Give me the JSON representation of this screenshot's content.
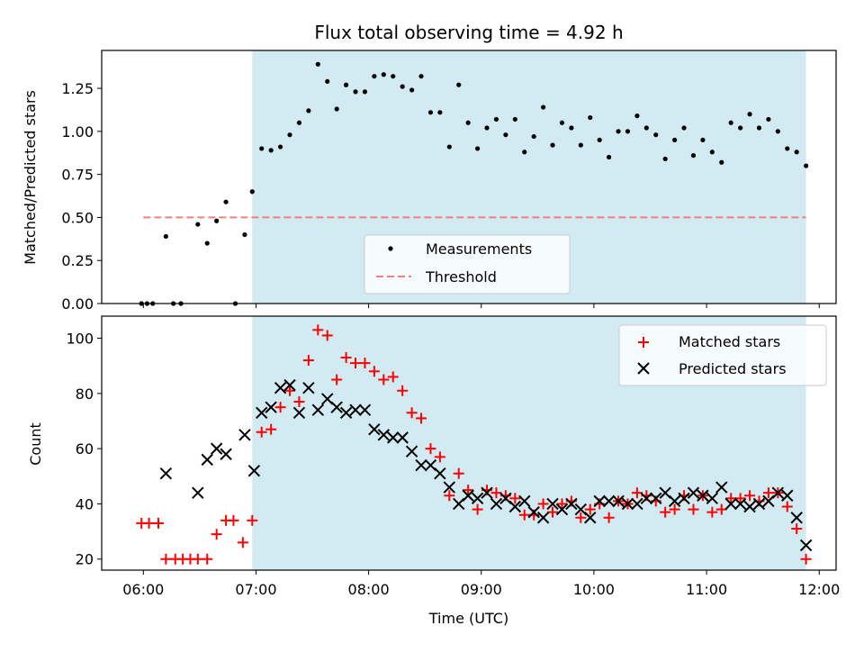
{
  "title": "Flux total observing time = 4.92 h",
  "colors": {
    "shade": "#add8e6",
    "measurement": "#000000",
    "threshold": "#f08080",
    "matched": "#ff0000",
    "predicted": "#000000"
  },
  "xaxis": {
    "label": "Time (UTC)",
    "range_hours": [
      5.63,
      12.15
    ],
    "ticks": [
      "06:00",
      "07:00",
      "08:00",
      "09:00",
      "10:00",
      "11:00",
      "12:00"
    ]
  },
  "shaded_interval": {
    "start": "06:58",
    "end": "11:53"
  },
  "chart_data": [
    {
      "type": "scatter",
      "name": "ratio-panel",
      "ylabel": "Matched/Predicted stars",
      "ylim": [
        0,
        1.47
      ],
      "yticks": [
        "0.00",
        "0.25",
        "0.50",
        "0.75",
        "1.00",
        "1.25"
      ],
      "threshold": {
        "name": "Threshold",
        "value": 0.5,
        "x_start": "06:00",
        "x_end": "11:53"
      },
      "legend": {
        "placement": "lower-center",
        "entries": [
          "Measurements",
          "Threshold"
        ]
      },
      "series": [
        {
          "name": "Measurements",
          "points": [
            [
              "05:59",
              0.0
            ],
            [
              "06:02",
              0.0
            ],
            [
              "06:05",
              0.0
            ],
            [
              "06:12",
              0.39
            ],
            [
              "06:16",
              0.0
            ],
            [
              "06:20",
              0.0
            ],
            [
              "06:29",
              0.46
            ],
            [
              "06:34",
              0.35
            ],
            [
              "06:39",
              0.48
            ],
            [
              "06:44",
              0.59
            ],
            [
              "06:49",
              0.0
            ],
            [
              "06:54",
              0.4
            ],
            [
              "06:58",
              0.65
            ],
            [
              "07:03",
              0.9
            ],
            [
              "07:08",
              0.89
            ],
            [
              "07:13",
              0.91
            ],
            [
              "07:18",
              0.98
            ],
            [
              "07:23",
              1.05
            ],
            [
              "07:28",
              1.12
            ],
            [
              "07:33",
              1.39
            ],
            [
              "07:38",
              1.29
            ],
            [
              "07:43",
              1.13
            ],
            [
              "07:48",
              1.27
            ],
            [
              "07:53",
              1.23
            ],
            [
              "07:58",
              1.23
            ],
            [
              "08:03",
              1.32
            ],
            [
              "08:08",
              1.33
            ],
            [
              "08:13",
              1.32
            ],
            [
              "08:18",
              1.26
            ],
            [
              "08:23",
              1.24
            ],
            [
              "08:28",
              1.32
            ],
            [
              "08:33",
              1.11
            ],
            [
              "08:38",
              1.11
            ],
            [
              "08:43",
              0.91
            ],
            [
              "08:48",
              1.27
            ],
            [
              "08:53",
              1.05
            ],
            [
              "08:58",
              0.9
            ],
            [
              "09:03",
              1.02
            ],
            [
              "09:08",
              1.07
            ],
            [
              "09:13",
              0.98
            ],
            [
              "09:18",
              1.07
            ],
            [
              "09:23",
              0.88
            ],
            [
              "09:28",
              0.97
            ],
            [
              "09:33",
              1.14
            ],
            [
              "09:38",
              0.92
            ],
            [
              "09:43",
              1.05
            ],
            [
              "09:48",
              1.02
            ],
            [
              "09:53",
              0.92
            ],
            [
              "09:58",
              1.08
            ],
            [
              "10:03",
              0.95
            ],
            [
              "10:08",
              0.85
            ],
            [
              "10:13",
              1.0
            ],
            [
              "10:18",
              1.0
            ],
            [
              "10:23",
              1.09
            ],
            [
              "10:28",
              1.02
            ],
            [
              "10:33",
              0.98
            ],
            [
              "10:38",
              0.84
            ],
            [
              "10:43",
              0.95
            ],
            [
              "10:48",
              1.02
            ],
            [
              "10:53",
              0.86
            ],
            [
              "10:58",
              0.95
            ],
            [
              "11:03",
              0.88
            ],
            [
              "11:08",
              0.82
            ],
            [
              "11:13",
              1.05
            ],
            [
              "11:18",
              1.02
            ],
            [
              "11:23",
              1.1
            ],
            [
              "11:28",
              1.02
            ],
            [
              "11:33",
              1.07
            ],
            [
              "11:38",
              1.0
            ],
            [
              "11:43",
              0.9
            ],
            [
              "11:48",
              0.88
            ],
            [
              "11:53",
              0.8
            ]
          ]
        }
      ]
    },
    {
      "type": "scatter",
      "name": "count-panel",
      "ylabel": "Count",
      "ylim": [
        16,
        108
      ],
      "yticks": [
        "20",
        "40",
        "60",
        "80",
        "100"
      ],
      "legend": {
        "placement": "upper-right",
        "entries": [
          "Matched stars",
          "Predicted stars"
        ]
      },
      "series": [
        {
          "name": "Matched stars",
          "marker": "plus",
          "points": [
            [
              "05:59",
              33
            ],
            [
              "06:03",
              33
            ],
            [
              "06:08",
              33
            ],
            [
              "06:12",
              20
            ],
            [
              "06:17",
              20
            ],
            [
              "06:21",
              20
            ],
            [
              "06:25",
              20
            ],
            [
              "06:29",
              20
            ],
            [
              "06:34",
              20
            ],
            [
              "06:39",
              29
            ],
            [
              "06:44",
              34
            ],
            [
              "06:48",
              34
            ],
            [
              "06:53",
              26
            ],
            [
              "06:58",
              34
            ],
            [
              "07:03",
              66
            ],
            [
              "07:08",
              67
            ],
            [
              "07:13",
              75
            ],
            [
              "07:18",
              81
            ],
            [
              "07:23",
              77
            ],
            [
              "07:28",
              92
            ],
            [
              "07:33",
              103
            ],
            [
              "07:38",
              101
            ],
            [
              "07:43",
              85
            ],
            [
              "07:48",
              93
            ],
            [
              "07:53",
              91
            ],
            [
              "07:58",
              91
            ],
            [
              "08:03",
              88
            ],
            [
              "08:08",
              85
            ],
            [
              "08:13",
              86
            ],
            [
              "08:18",
              81
            ],
            [
              "08:23",
              73
            ],
            [
              "08:28",
              71
            ],
            [
              "08:33",
              60
            ],
            [
              "08:38",
              57
            ],
            [
              "08:43",
              43
            ],
            [
              "08:48",
              51
            ],
            [
              "08:53",
              45
            ],
            [
              "08:58",
              38
            ],
            [
              "09:03",
              45
            ],
            [
              "09:08",
              44
            ],
            [
              "09:13",
              43
            ],
            [
              "09:18",
              42
            ],
            [
              "09:23",
              36
            ],
            [
              "09:28",
              36
            ],
            [
              "09:33",
              40
            ],
            [
              "09:38",
              37
            ],
            [
              "09:43",
              40
            ],
            [
              "09:48",
              41
            ],
            [
              "09:53",
              35
            ],
            [
              "09:58",
              38
            ],
            [
              "10:03",
              40
            ],
            [
              "10:08",
              35
            ],
            [
              "10:13",
              41
            ],
            [
              "10:18",
              40
            ],
            [
              "10:23",
              44
            ],
            [
              "10:28",
              43
            ],
            [
              "10:33",
              41
            ],
            [
              "10:38",
              37
            ],
            [
              "10:43",
              38
            ],
            [
              "10:48",
              43
            ],
            [
              "10:53",
              38
            ],
            [
              "10:58",
              43
            ],
            [
              "11:03",
              37
            ],
            [
              "11:08",
              38
            ],
            [
              "11:13",
              42
            ],
            [
              "11:18",
              42
            ],
            [
              "11:23",
              43
            ],
            [
              "11:28",
              41
            ],
            [
              "11:33",
              44
            ],
            [
              "11:38",
              44
            ],
            [
              "11:43",
              39
            ],
            [
              "11:48",
              31
            ],
            [
              "11:53",
              20
            ]
          ]
        },
        {
          "name": "Predicted stars",
          "marker": "x",
          "points": [
            [
              "06:12",
              51
            ],
            [
              "06:29",
              44
            ],
            [
              "06:34",
              56
            ],
            [
              "06:39",
              60
            ],
            [
              "06:44",
              58
            ],
            [
              "06:54",
              65
            ],
            [
              "06:59",
              52
            ],
            [
              "07:03",
              73
            ],
            [
              "07:08",
              75
            ],
            [
              "07:13",
              82
            ],
            [
              "07:18",
              83
            ],
            [
              "07:23",
              73
            ],
            [
              "07:28",
              82
            ],
            [
              "07:33",
              74
            ],
            [
              "07:38",
              78
            ],
            [
              "07:43",
              75
            ],
            [
              "07:48",
              73
            ],
            [
              "07:53",
              74
            ],
            [
              "07:58",
              74
            ],
            [
              "08:03",
              67
            ],
            [
              "08:08",
              65
            ],
            [
              "08:13",
              64
            ],
            [
              "08:18",
              64
            ],
            [
              "08:23",
              59
            ],
            [
              "08:28",
              54
            ],
            [
              "08:33",
              54
            ],
            [
              "08:38",
              51
            ],
            [
              "08:43",
              46
            ],
            [
              "08:48",
              40
            ],
            [
              "08:53",
              43
            ],
            [
              "08:58",
              42
            ],
            [
              "09:03",
              44
            ],
            [
              "09:08",
              40
            ],
            [
              "09:13",
              42
            ],
            [
              "09:18",
              39
            ],
            [
              "09:23",
              41
            ],
            [
              "09:28",
              37
            ],
            [
              "09:33",
              35
            ],
            [
              "09:38",
              40
            ],
            [
              "09:43",
              38
            ],
            [
              "09:48",
              40
            ],
            [
              "09:53",
              38
            ],
            [
              "09:58",
              35
            ],
            [
              "10:03",
              41
            ],
            [
              "10:08",
              41
            ],
            [
              "10:13",
              41
            ],
            [
              "10:18",
              40
            ],
            [
              "10:23",
              40
            ],
            [
              "10:28",
              42
            ],
            [
              "10:33",
              42
            ],
            [
              "10:38",
              44
            ],
            [
              "10:43",
              41
            ],
            [
              "10:48",
              42
            ],
            [
              "10:53",
              44
            ],
            [
              "10:58",
              43
            ],
            [
              "11:03",
              42
            ],
            [
              "11:08",
              46
            ],
            [
              "11:13",
              40
            ],
            [
              "11:18",
              40
            ],
            [
              "11:23",
              39
            ],
            [
              "11:28",
              40
            ],
            [
              "11:33",
              41
            ],
            [
              "11:38",
              44
            ],
            [
              "11:43",
              43
            ],
            [
              "11:48",
              35
            ],
            [
              "11:53",
              25
            ]
          ]
        }
      ]
    }
  ]
}
